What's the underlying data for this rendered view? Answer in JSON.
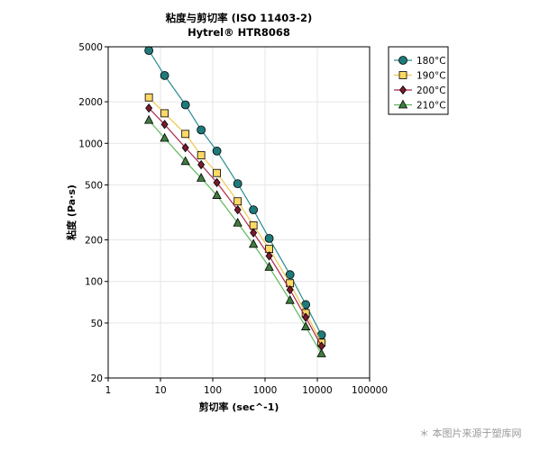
{
  "chart_data": {
    "type": "line",
    "title": "粘度与剪切率 (ISO 11403-2)",
    "subtitle": "Hytrel® HTR8068",
    "xlabel": "剪切率 (sec^-1)",
    "ylabel": "粘度 (Pa·s)",
    "xscale": "log",
    "yscale": "log",
    "xlim": [
      1,
      100000
    ],
    "ylim": [
      20,
      5000
    ],
    "x_ticks": [
      1,
      10,
      100,
      1000,
      10000,
      100000
    ],
    "x_tick_labels": [
      "1",
      "10",
      "100",
      "1000",
      "10000",
      "100000"
    ],
    "y_ticks": [
      20,
      50,
      100,
      200,
      500,
      1000,
      2000,
      5000
    ],
    "y_tick_labels": [
      "20",
      "50",
      "100",
      "200",
      "500",
      "1000",
      "2000",
      "5000"
    ],
    "grid": true,
    "legend_position": "top-right, outside plot",
    "series": [
      {
        "name": "180°C",
        "marker": "circle",
        "line_color": "#2a8c8c",
        "fill": "#1f7a7a",
        "x": [
          6,
          12,
          30,
          60,
          120,
          300,
          600,
          1200,
          3000,
          6000,
          12000
        ],
        "y": [
          4700,
          3100,
          1900,
          1250,
          880,
          510,
          330,
          205,
          112,
          68,
          41
        ]
      },
      {
        "name": "190°C",
        "marker": "square",
        "line_color": "#f0c64a",
        "fill": "#ffd966",
        "x": [
          6,
          12,
          30,
          60,
          120,
          300,
          600,
          1200,
          3000,
          6000,
          12000
        ],
        "y": [
          2150,
          1650,
          1170,
          820,
          610,
          380,
          255,
          172,
          97,
          59,
          36
        ]
      },
      {
        "name": "200°C",
        "marker": "diamond",
        "line_color": "#a8274a",
        "fill": "#7a1a2e",
        "x": [
          6,
          12,
          30,
          60,
          120,
          300,
          600,
          1200,
          3000,
          6000,
          12000
        ],
        "y": [
          1800,
          1370,
          930,
          700,
          520,
          330,
          225,
          153,
          87,
          55,
          34
        ]
      },
      {
        "name": "210°C",
        "marker": "triangle",
        "line_color": "#5cb85c",
        "fill": "#3f7d3f",
        "x": [
          6,
          12,
          30,
          60,
          120,
          300,
          600,
          1200,
          3000,
          6000,
          12000
        ],
        "y": [
          1470,
          1090,
          740,
          560,
          420,
          265,
          186,
          127,
          73,
          47,
          30
        ]
      }
    ]
  },
  "watermark": "＊ 本图片来源于塑库网"
}
